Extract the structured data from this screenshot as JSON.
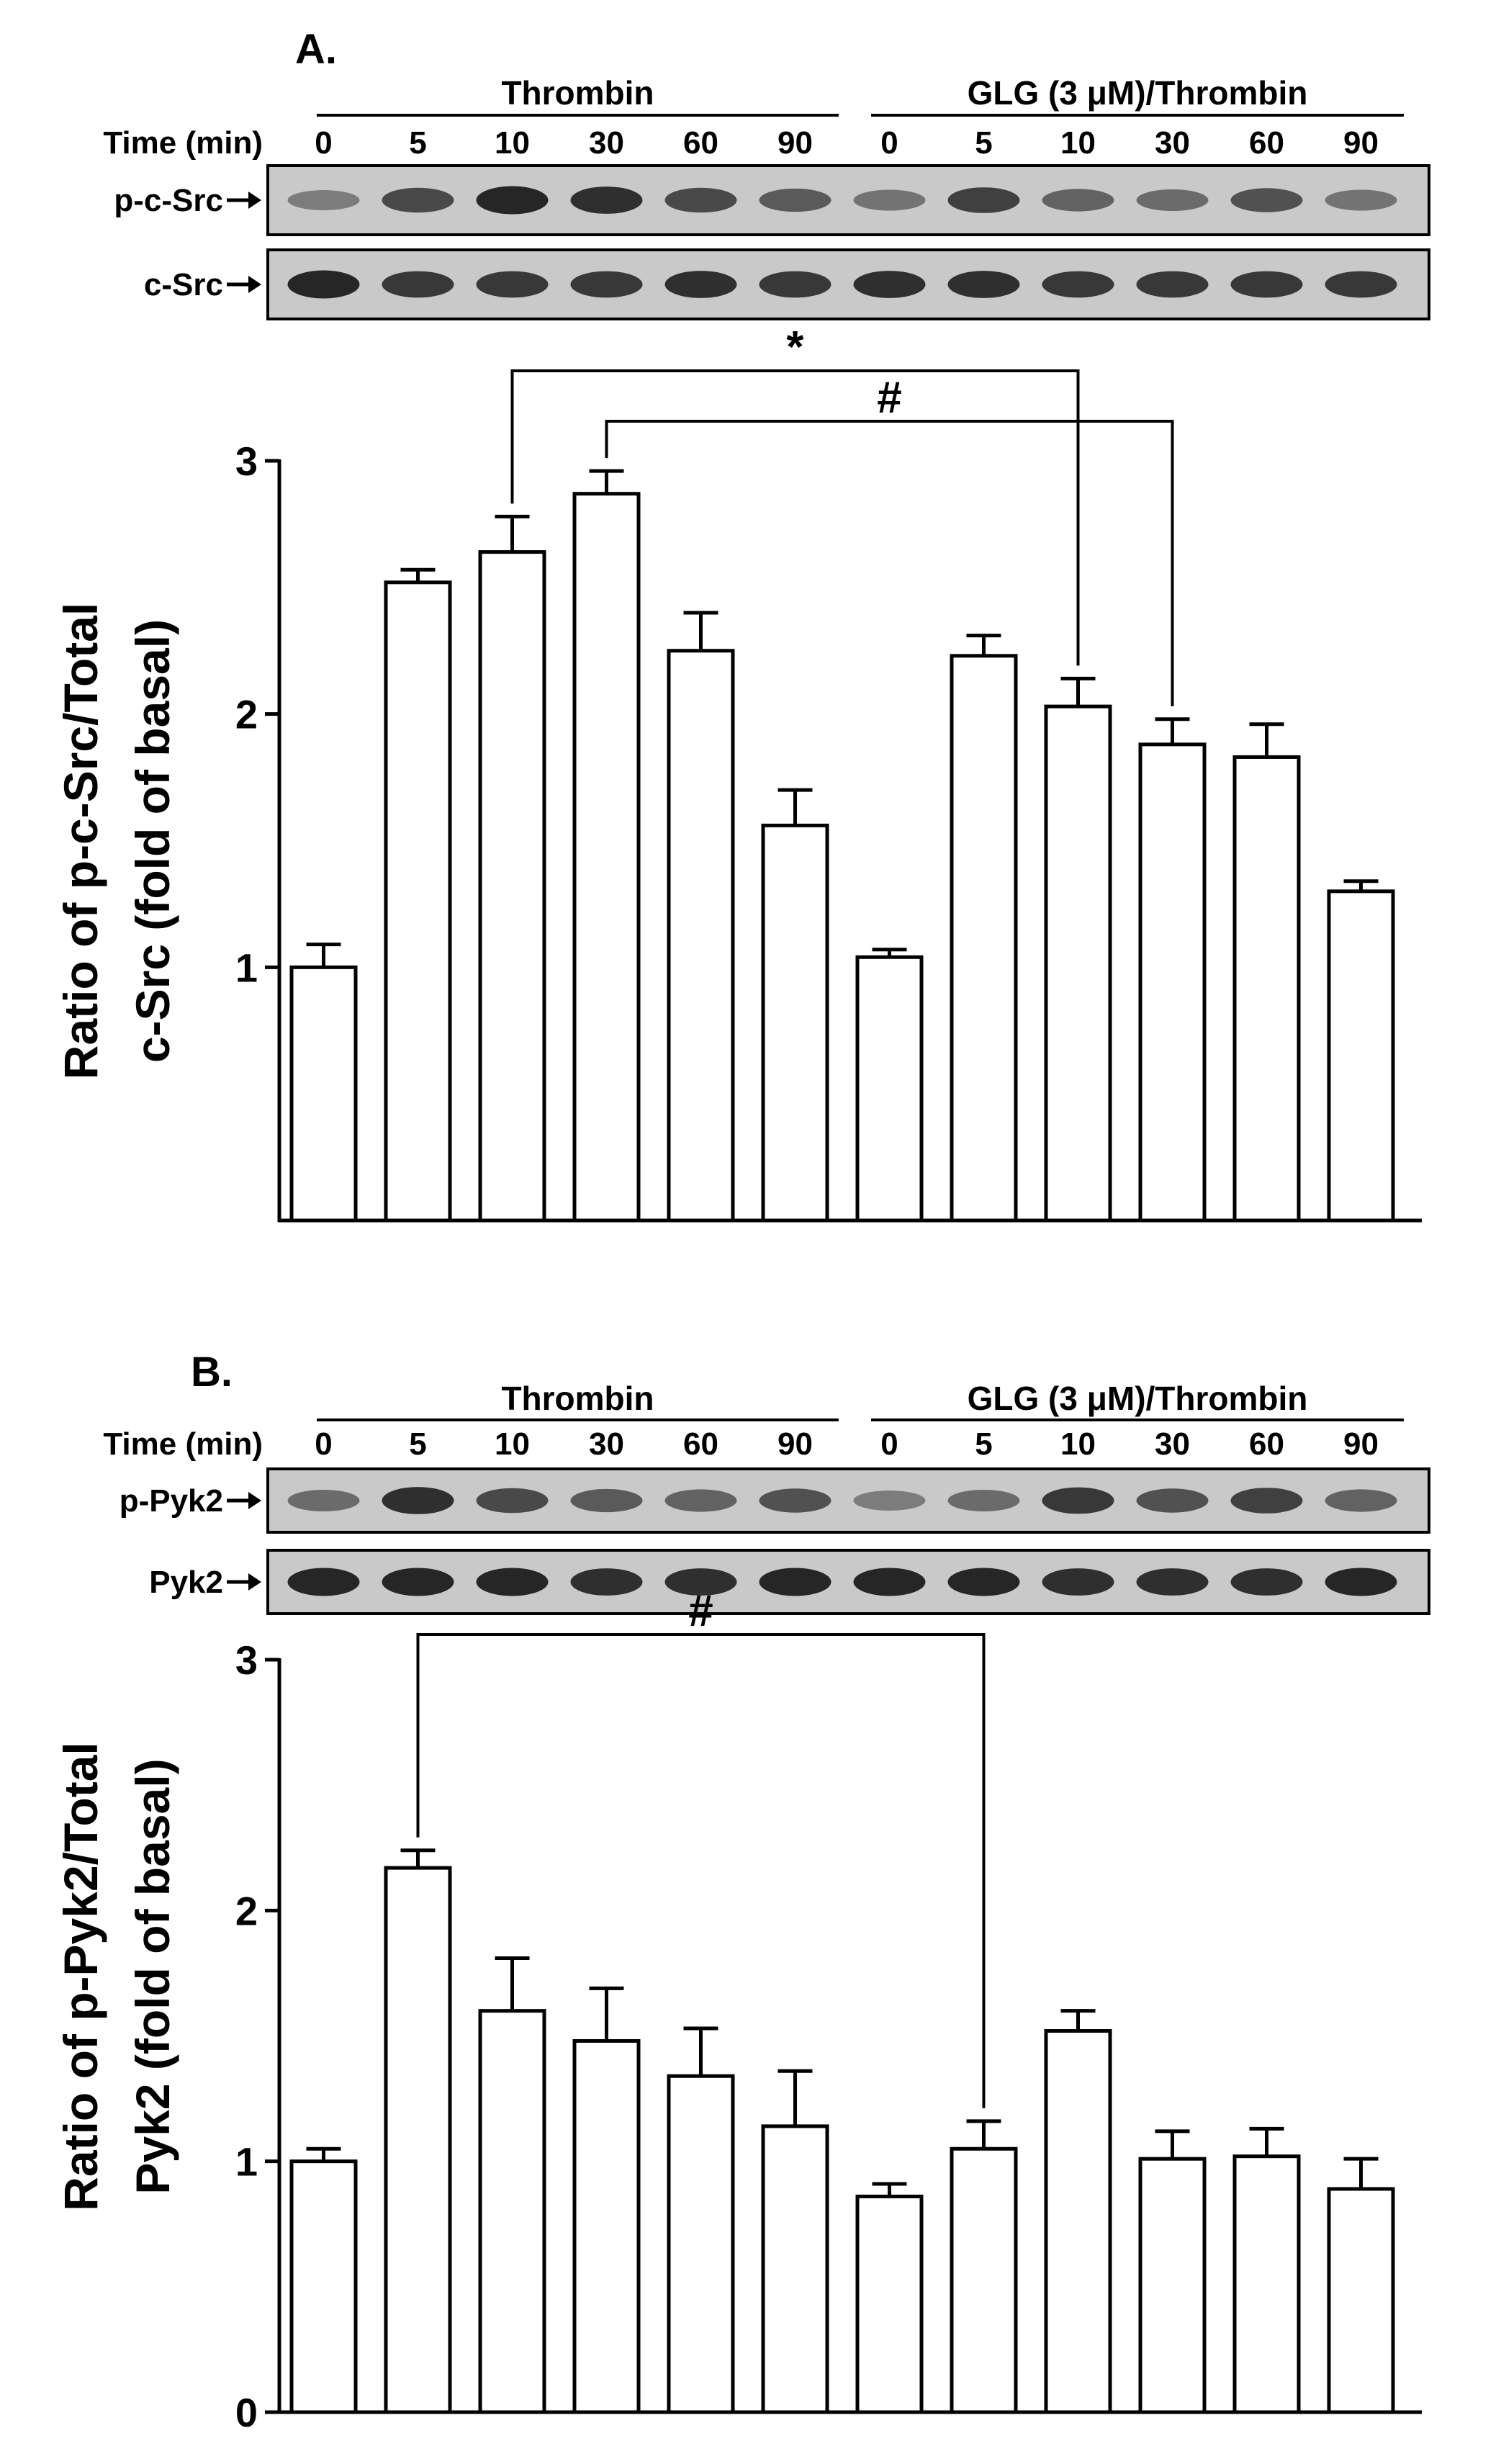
{
  "colors": {
    "ink": "#000000",
    "bar_fill": "#ffffff",
    "blot_bg": "#c9c9c9",
    "band": "#1e1e1e"
  },
  "time_label": "Time (min)",
  "chart_data": [
    {
      "panel_label": "A.",
      "type": "bar",
      "groups": [
        "Thrombin",
        "GLG (3 μM)/Thrombin"
      ],
      "categories": [
        "0",
        "5",
        "10",
        "30",
        "60",
        "90",
        "0",
        "5",
        "10",
        "30",
        "60",
        "90"
      ],
      "values": [
        1.0,
        2.52,
        2.64,
        2.87,
        2.25,
        1.56,
        1.04,
        2.23,
        2.03,
        1.88,
        1.83,
        1.3
      ],
      "errors": [
        0.09,
        0.05,
        0.14,
        0.09,
        0.15,
        0.14,
        0.03,
        0.08,
        0.11,
        0.1,
        0.13,
        0.04
      ],
      "blot_rows": [
        "p-c-Src",
        "c-Src"
      ],
      "band_intensity": [
        [
          0.45,
          0.75,
          0.95,
          0.9,
          0.75,
          0.65,
          0.5,
          0.8,
          0.6,
          0.55,
          0.7,
          0.5
        ],
        [
          0.95,
          0.85,
          0.85,
          0.85,
          0.9,
          0.85,
          0.9,
          0.9,
          0.85,
          0.85,
          0.85,
          0.85
        ]
      ],
      "ylabel_line1": "Ratio of p-c-Src/Total",
      "ylabel_line2": "c-Src (fold of basal)",
      "yticks": [
        1,
        2,
        3
      ],
      "ylim": [
        0,
        3
      ],
      "significance": [
        {
          "symbol": "*",
          "from": 2,
          "to": 8
        },
        {
          "symbol": "#",
          "from": 3,
          "to": 9
        }
      ]
    },
    {
      "panel_label": "B.",
      "type": "bar",
      "groups": [
        "Thrombin",
        "GLG (3 μM)/Thrombin"
      ],
      "categories": [
        "0",
        "5",
        "10",
        "30",
        "60",
        "90",
        "0",
        "5",
        "10",
        "30",
        "60",
        "90"
      ],
      "values": [
        1.0,
        2.17,
        1.6,
        1.48,
        1.34,
        1.14,
        0.86,
        1.05,
        1.52,
        1.01,
        1.02,
        0.89
      ],
      "errors": [
        0.05,
        0.07,
        0.21,
        0.21,
        0.19,
        0.22,
        0.05,
        0.11,
        0.08,
        0.11,
        0.11,
        0.12
      ],
      "blot_rows": [
        "p-Pyk2",
        "Pyk2"
      ],
      "band_intensity": [
        [
          0.55,
          0.9,
          0.75,
          0.65,
          0.6,
          0.7,
          0.45,
          0.55,
          0.85,
          0.7,
          0.8,
          0.6
        ],
        [
          0.95,
          0.95,
          0.95,
          0.9,
          0.9,
          0.95,
          0.95,
          0.95,
          0.9,
          0.9,
          0.9,
          0.95
        ]
      ],
      "ylabel_line1": "Ratio of p-Pyk2/Total",
      "ylabel_line2": "Pyk2  (fold of basal)",
      "yticks": [
        0,
        1,
        2,
        3
      ],
      "ylim": [
        0,
        3
      ],
      "significance": [
        {
          "symbol": "#",
          "from": 1,
          "to": 7
        }
      ]
    }
  ]
}
